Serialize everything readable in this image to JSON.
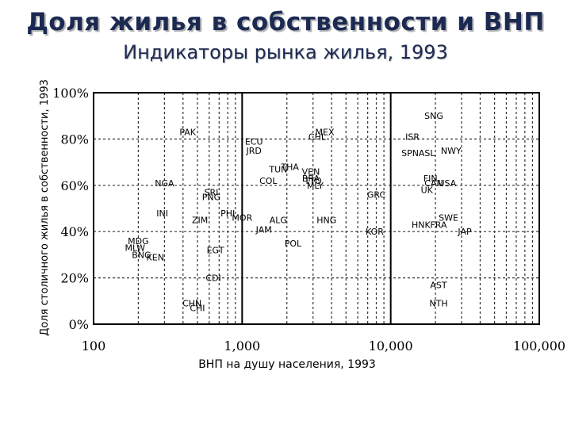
{
  "slide": {
    "title": "Доля жилья в собственности и ВНП",
    "subtitle": "Индикаторы рынка жилья, 1993"
  },
  "chart_data": {
    "type": "scatter",
    "title": "Доля жилья в собственности и ВНП",
    "subtitle": "Индикаторы рынка жилья, 1993",
    "xlabel": "ВНП на душу населения, 1993",
    "ylabel": "Доля столичного жилья в собственности, 1993",
    "x_scale": "log",
    "xlim": [
      100,
      100000
    ],
    "ylim": [
      0,
      100
    ],
    "x_ticks": [
      100,
      1000,
      10000,
      100000
    ],
    "x_tick_labels": [
      "100",
      "1,000",
      "10,000",
      "100,000"
    ],
    "y_ticks": [
      0,
      20,
      40,
      60,
      80,
      100
    ],
    "y_tick_labels": [
      "0%",
      "20%",
      "40%",
      "60%",
      "80%",
      "100%"
    ],
    "grid": true,
    "points": [
      {
        "label": "PAK",
        "x": 430,
        "y": 83
      },
      {
        "label": "ECU",
        "x": 1200,
        "y": 79
      },
      {
        "label": "JRD",
        "x": 1200,
        "y": 75
      },
      {
        "label": "MEX",
        "x": 3600,
        "y": 83
      },
      {
        "label": "CHL",
        "x": 3200,
        "y": 81
      },
      {
        "label": "TUN",
        "x": 1750,
        "y": 67
      },
      {
        "label": "THA",
        "x": 2100,
        "y": 68
      },
      {
        "label": "VEN",
        "x": 2900,
        "y": 66
      },
      {
        "label": "BRA",
        "x": 2900,
        "y": 63
      },
      {
        "label": "TTO",
        "x": 3000,
        "y": 62
      },
      {
        "label": "MLY",
        "x": 3100,
        "y": 60
      },
      {
        "label": "COL",
        "x": 1500,
        "y": 62
      },
      {
        "label": "NGA",
        "x": 300,
        "y": 61
      },
      {
        "label": "SRI",
        "x": 620,
        "y": 57
      },
      {
        "label": "PNG",
        "x": 620,
        "y": 55
      },
      {
        "label": "GRC",
        "x": 8000,
        "y": 56
      },
      {
        "label": "INI",
        "x": 290,
        "y": 48
      },
      {
        "label": "ZIM",
        "x": 520,
        "y": 45
      },
      {
        "label": "PHI",
        "x": 800,
        "y": 48
      },
      {
        "label": "MOR",
        "x": 1000,
        "y": 46
      },
      {
        "label": "ALG",
        "x": 1750,
        "y": 45
      },
      {
        "label": "HNG",
        "x": 3700,
        "y": 45
      },
      {
        "label": "JAM",
        "x": 1400,
        "y": 41
      },
      {
        "label": "KOR",
        "x": 7800,
        "y": 40
      },
      {
        "label": "POL",
        "x": 2200,
        "y": 35
      },
      {
        "label": "MDG",
        "x": 200,
        "y": 36
      },
      {
        "label": "MLW",
        "x": 190,
        "y": 33
      },
      {
        "label": "BNG",
        "x": 210,
        "y": 30
      },
      {
        "label": "KEN",
        "x": 260,
        "y": 29
      },
      {
        "label": "EGT",
        "x": 660,
        "y": 32
      },
      {
        "label": "CDI",
        "x": 640,
        "y": 20
      },
      {
        "label": "CHN",
        "x": 460,
        "y": 9
      },
      {
        "label": "CHI",
        "x": 500,
        "y": 7
      },
      {
        "label": "SNG",
        "x": 19500,
        "y": 90
      },
      {
        "label": "ISR",
        "x": 14000,
        "y": 81
      },
      {
        "label": "SPN",
        "x": 13500,
        "y": 74
      },
      {
        "label": "ASL",
        "x": 17500,
        "y": 74
      },
      {
        "label": "NWY",
        "x": 25500,
        "y": 75
      },
      {
        "label": "FIN",
        "x": 18500,
        "y": 63
      },
      {
        "label": "CAN",
        "x": 19500,
        "y": 61
      },
      {
        "label": "USA",
        "x": 24000,
        "y": 61
      },
      {
        "label": "UK",
        "x": 17500,
        "y": 58
      },
      {
        "label": "SWE",
        "x": 24500,
        "y": 46
      },
      {
        "label": "HNK",
        "x": 16000,
        "y": 43
      },
      {
        "label": "FRA",
        "x": 21000,
        "y": 43
      },
      {
        "label": "JAP",
        "x": 31500,
        "y": 40
      },
      {
        "label": "AST",
        "x": 21000,
        "y": 17
      },
      {
        "label": "NTH",
        "x": 21000,
        "y": 9
      }
    ]
  }
}
